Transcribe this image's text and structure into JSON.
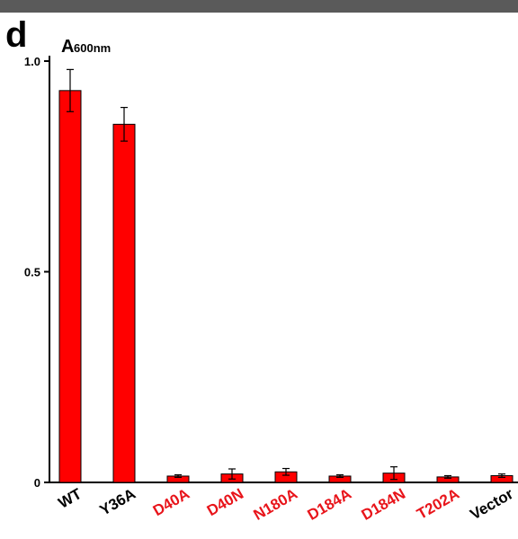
{
  "chart_data": {
    "type": "bar",
    "panel_label": "d",
    "y_label": "A",
    "y_label_sub": "600nm",
    "categories": [
      "WT",
      "Y36A",
      "D40A",
      "D40N",
      "N180A",
      "D184A",
      "D184N",
      "T202A",
      "Vector"
    ],
    "category_colors": [
      "#000000",
      "#000000",
      "#e8141a",
      "#e8141a",
      "#e8141a",
      "#e8141a",
      "#e8141a",
      "#e8141a",
      "#000000"
    ],
    "values": [
      0.93,
      0.85,
      0.015,
      0.02,
      0.025,
      0.015,
      0.022,
      0.013,
      0.016
    ],
    "errors": [
      0.05,
      0.04,
      0.003,
      0.012,
      0.008,
      0.003,
      0.015,
      0.003,
      0.004
    ],
    "color": "#ff0000",
    "ylim": [
      0,
      1
    ],
    "yticks": [
      0,
      0.5,
      {
        "value": 1,
        "label": "1.0"
      }
    ]
  }
}
